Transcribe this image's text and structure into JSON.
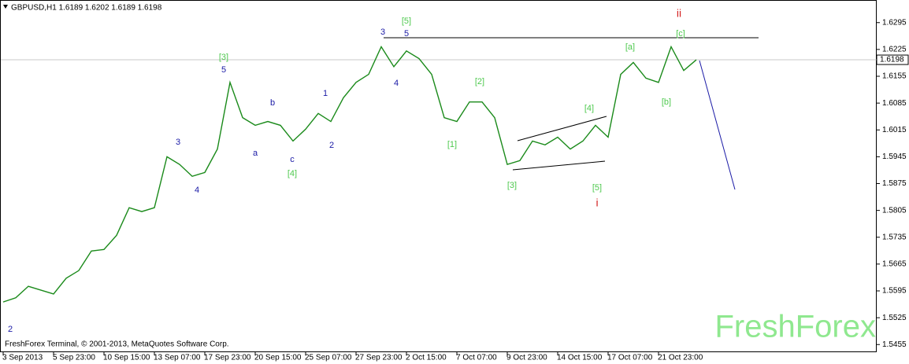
{
  "chart_data": {
    "type": "line",
    "title": "GBPUSD,H1  1.6189 1.6202 1.6189 1.6198",
    "footer": "FreshForex Terminal, © 2001-2013, MetaQuotes Software Corp.",
    "watermark": "FreshForex",
    "categories": [
      "3 Sep 2013",
      null,
      null,
      null,
      "5 Sep 23:00",
      null,
      null,
      null,
      "10 Sep 15:00",
      null,
      null,
      null,
      "13 Sep 07:00",
      null,
      null,
      null,
      "17 Sep 23:00",
      null,
      null,
      null,
      "20 Sep 15:00",
      null,
      null,
      null,
      "25 Sep 07:00",
      null,
      null,
      null,
      "27 Sep 23:00",
      null,
      null,
      null,
      "2 Oct 15:00",
      null,
      null,
      null,
      "7 Oct 07:00",
      null,
      null,
      null,
      "9 Oct 23:00",
      null,
      null,
      null,
      "14 Oct 15:00",
      null,
      null,
      null,
      "17 Oct 07:00",
      null,
      null,
      null,
      "21 Oct 23:00",
      null,
      null,
      null
    ],
    "series": [
      {
        "name": "GBPUSD",
        "color": "#1a8a1a",
        "values": [
          1.5566,
          1.5577,
          1.5607,
          1.5597,
          1.5587,
          1.5628,
          1.5648,
          1.5699,
          1.5703,
          1.574,
          1.5812,
          1.5802,
          1.5812,
          1.5945,
          1.5925,
          1.5894,
          1.5904,
          1.5965,
          1.6139,
          1.6047,
          1.6027,
          1.6037,
          1.6027,
          1.5986,
          1.6017,
          1.6058,
          1.6037,
          1.6099,
          1.6139,
          1.616,
          1.6232,
          1.618,
          1.6221,
          1.6201,
          1.616,
          1.6047,
          1.6037,
          1.6088,
          1.6088,
          1.6047,
          1.5925,
          1.5935,
          1.5986,
          1.5976,
          1.5996,
          1.5965,
          1.5986,
          1.6027,
          1.5996,
          1.616,
          1.6191,
          1.615,
          1.6139,
          1.6232,
          1.617,
          1.6198
        ]
      }
    ],
    "current_price": 1.6198,
    "ylim": [
      1.5435,
      1.6354
    ],
    "yticks": [
      1.6295,
      1.6225,
      1.6155,
      1.6085,
      1.6015,
      1.5945,
      1.5875,
      1.5805,
      1.5735,
      1.5665,
      1.5595,
      1.5525,
      1.5455
    ],
    "annotations": [
      {
        "text": "2",
        "color": "#1a1aa6"
      },
      {
        "text": "3",
        "color": "#1a1aa6"
      },
      {
        "text": "4",
        "color": "#1a1aa6"
      },
      {
        "text": "[3]",
        "color": "#4fc94f"
      },
      {
        "text": "5",
        "color": "#1a1aa6"
      },
      {
        "text": "a",
        "color": "#1a1aa6"
      },
      {
        "text": "b",
        "color": "#1a1aa6"
      },
      {
        "text": "c",
        "color": "#1a1aa6"
      },
      {
        "text": "[4]",
        "color": "#4fc94f"
      },
      {
        "text": "1",
        "color": "#1a1aa6"
      },
      {
        "text": "2",
        "color": "#1a1aa6"
      },
      {
        "text": "3",
        "color": "#1a1aa6"
      },
      {
        "text": "5",
        "color": "#1a1aa6"
      },
      {
        "text": "[5]",
        "color": "#4fc94f"
      },
      {
        "text": "4",
        "color": "#1a1aa6"
      },
      {
        "text": "[2]",
        "color": "#4fc94f"
      },
      {
        "text": "[1]",
        "color": "#4fc94f"
      },
      {
        "text": "[3]",
        "color": "#4fc94f"
      },
      {
        "text": "[4]",
        "color": "#4fc94f"
      },
      {
        "text": "[5]",
        "color": "#4fc94f"
      },
      {
        "text": "i",
        "color": "#d42020"
      },
      {
        "text": "[a]",
        "color": "#4fc94f"
      },
      {
        "text": "[b]",
        "color": "#4fc94f"
      },
      {
        "text": "[c]",
        "color": "#4fc94f"
      },
      {
        "text": "ii",
        "color": "#d42020"
      }
    ]
  }
}
